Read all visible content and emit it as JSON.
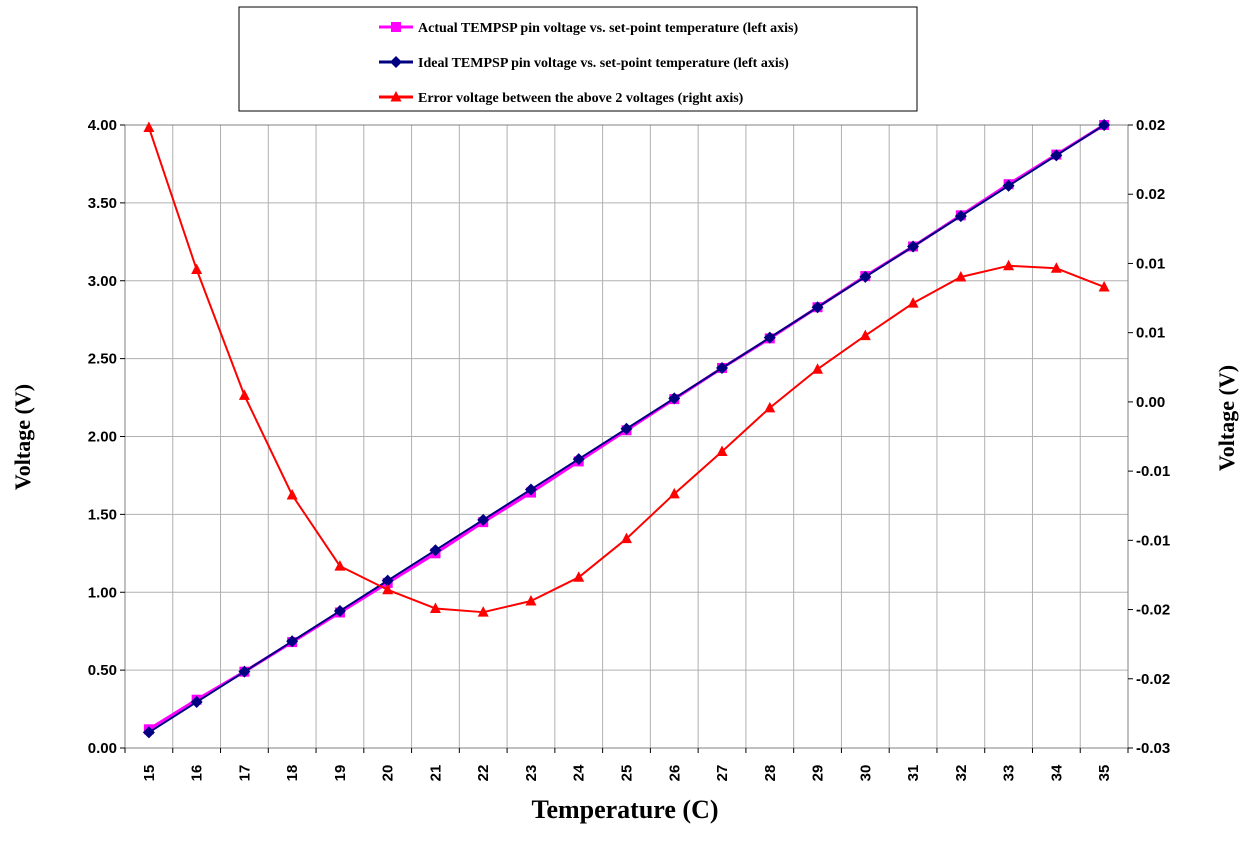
{
  "colors": {
    "actual": "#FF00FF",
    "ideal": "#000080",
    "error": "#FF0000",
    "grid": "#B0B0B0"
  },
  "chart_data": {
    "type": "line",
    "title": "",
    "xlabel": "Temperature (C)",
    "ylabel": "Voltage (V)",
    "y2label": "Voltage (V)",
    "x": [
      15,
      16,
      17,
      18,
      19,
      20,
      21,
      22,
      23,
      24,
      25,
      26,
      27,
      28,
      29,
      30,
      31,
      32,
      33,
      34,
      35
    ],
    "ylim": [
      0,
      4
    ],
    "y2lim": [
      -0.03,
      0.02
    ],
    "yticks": [
      "0.00",
      "0.50",
      "1.00",
      "1.50",
      "2.00",
      "2.50",
      "3.00",
      "3.50",
      "4.00"
    ],
    "y2ticks": [
      "-0.03",
      "-0.02",
      "-0.02",
      "-0.01",
      "-0.01",
      "0.00",
      "0.01",
      "0.01",
      "0.02",
      "0.02"
    ],
    "grid": true,
    "legend_position": "top-center",
    "series": [
      {
        "name": "Actual TEMPSP pin voltage vs. set-point temperature (left axis)",
        "axis": "left",
        "marker": "square",
        "values": [
          0.12,
          0.31,
          0.49,
          0.68,
          0.87,
          1.06,
          1.25,
          1.45,
          1.64,
          1.84,
          2.04,
          2.24,
          2.44,
          2.63,
          2.83,
          3.03,
          3.22,
          3.42,
          3.62,
          3.81,
          4.0
        ]
      },
      {
        "name": "Ideal TEMPSP pin voltage vs. set-point temperature (left axis)",
        "axis": "left",
        "marker": "diamond",
        "values": [
          0.1,
          0.295,
          0.49,
          0.685,
          0.88,
          1.075,
          1.27,
          1.465,
          1.66,
          1.855,
          2.05,
          2.245,
          2.44,
          2.635,
          2.83,
          3.025,
          3.22,
          3.415,
          3.61,
          3.805,
          4.0
        ]
      },
      {
        "name": "Error voltage between the above 2 voltages (right axis)",
        "axis": "right",
        "marker": "triangle",
        "values": [
          0.0198,
          0.0084,
          -0.0017,
          -0.0097,
          -0.0154,
          -0.0173,
          -0.0188,
          -0.0191,
          -0.0182,
          -0.0163,
          -0.0132,
          -0.0096,
          -0.0062,
          -0.0027,
          0.0004,
          0.0031,
          0.0057,
          0.0078,
          0.0087,
          0.0085,
          0.007
        ]
      }
    ]
  }
}
